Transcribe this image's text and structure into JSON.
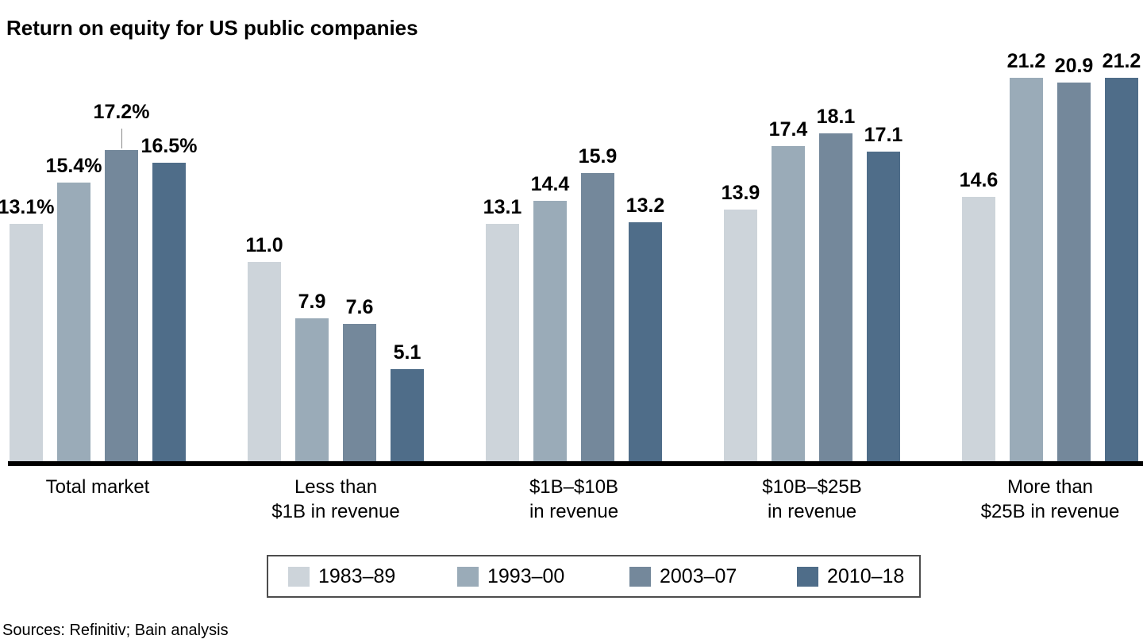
{
  "header": {
    "title": "Return on equity for US public companies"
  },
  "footer": {
    "sources": "Sources: Refinitiv; Bain analysis"
  },
  "colors": {
    "series": [
      "#cdd4da",
      "#9aabb8",
      "#74889b",
      "#4f6d89"
    ],
    "axis": "#000000",
    "callout_line": "#8a8a8a",
    "legend_border": "#4d4d4d",
    "text": "#000000",
    "background": "#ffffff"
  },
  "chart_data": {
    "type": "bar",
    "title": "Return on equity for US public companies",
    "xlabel": "",
    "ylabel": "",
    "unit": "percent",
    "ylim": [
      0,
      22
    ],
    "grid": false,
    "y_axis_visible": false,
    "baseline_axis_only": true,
    "legend_position": "bottom",
    "categories": [
      [
        "Total market"
      ],
      [
        "Less than",
        "$1B in revenue"
      ],
      [
        "$1B–$10B",
        "in revenue"
      ],
      [
        "$10B–$25B",
        "in revenue"
      ],
      [
        "More than",
        "$25B in revenue"
      ]
    ],
    "series": [
      {
        "name": "1983–89",
        "color": "#cdd4da",
        "values": [
          13.1,
          11.0,
          13.1,
          13.9,
          14.6
        ]
      },
      {
        "name": "1993–00",
        "color": "#9aabb8",
        "values": [
          15.4,
          7.9,
          14.4,
          17.4,
          21.2
        ]
      },
      {
        "name": "2003–07",
        "color": "#74889b",
        "values": [
          17.2,
          7.6,
          15.9,
          18.1,
          20.9
        ]
      },
      {
        "name": "2010–18",
        "color": "#4f6d89",
        "values": [
          16.5,
          5.1,
          13.2,
          17.1,
          21.2
        ]
      }
    ],
    "value_labels": [
      [
        "13.1%",
        "15.4%",
        "17.2%",
        "16.5%"
      ],
      [
        "11.0",
        "7.9",
        "7.6",
        "5.1"
      ],
      [
        "13.1",
        "14.4",
        "15.9",
        "13.2"
      ],
      [
        "13.9",
        "17.4",
        "18.1",
        "17.1"
      ],
      [
        "14.6",
        "21.2",
        "20.9",
        "21.2"
      ]
    ],
    "callout": {
      "category_index": 0,
      "series_index": 2
    }
  }
}
